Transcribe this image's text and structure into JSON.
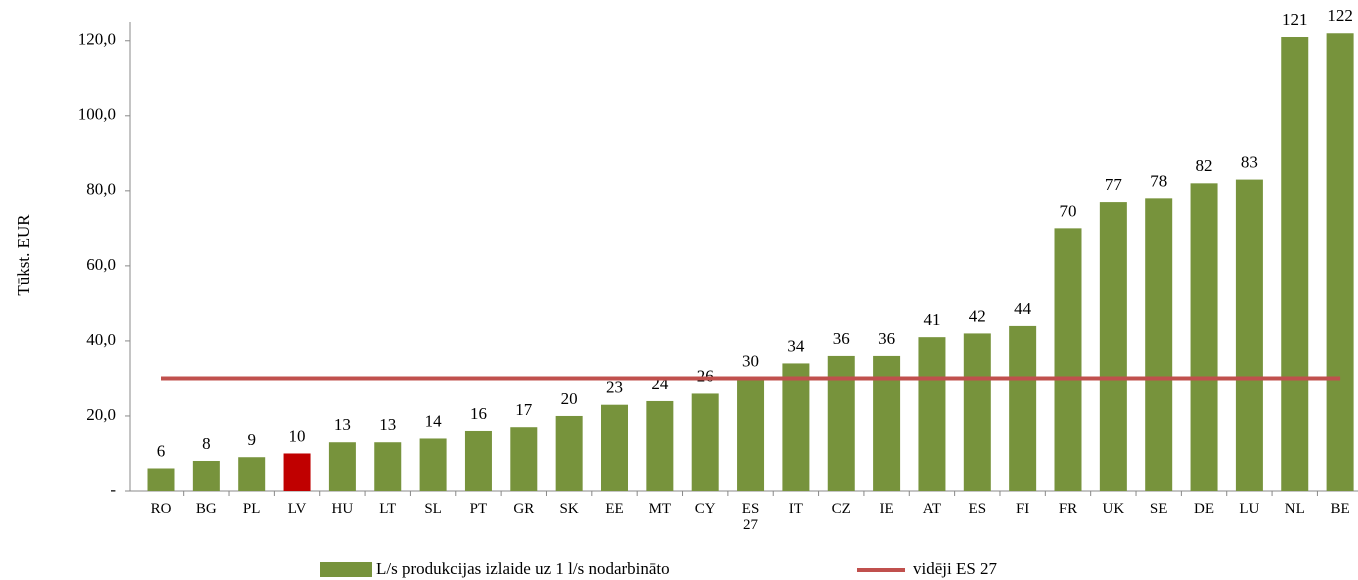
{
  "chart_data": {
    "type": "bar",
    "y_label": "Tūkst. EUR",
    "categories": [
      "RO",
      "BG",
      "PL",
      "LV",
      "HU",
      "LT",
      "SL",
      "PT",
      "GR",
      "SK",
      "EE",
      "MT",
      "CY",
      "ES 27",
      "IT",
      "CZ",
      "IE",
      "AT",
      "ES",
      "FI",
      "FR",
      "UK",
      "SE",
      "DE",
      "LU",
      "NL",
      "BE"
    ],
    "series": [
      {
        "name": "L/s produkcijas izlaide uz 1 l/s nodarbināto",
        "type": "bar",
        "color": "#77933c",
        "colors": [
          "#77933c",
          "#77933c",
          "#77933c",
          "#c00000",
          "#77933c",
          "#77933c",
          "#77933c",
          "#77933c",
          "#77933c",
          "#77933c",
          "#77933c",
          "#77933c",
          "#77933c",
          "#77933c",
          "#77933c",
          "#77933c",
          "#77933c",
          "#77933c",
          "#77933c",
          "#77933c",
          "#77933c",
          "#77933c",
          "#77933c",
          "#77933c",
          "#77933c",
          "#77933c",
          "#77933c"
        ],
        "values": [
          6,
          8,
          9,
          10,
          13,
          13,
          14,
          16,
          17,
          20,
          23,
          24,
          26,
          30,
          34,
          36,
          36,
          41,
          42,
          44,
          70,
          77,
          78,
          82,
          83,
          121,
          122
        ]
      },
      {
        "name": "vidēji ES 27",
        "type": "line",
        "color": "#c0504d",
        "values": [
          30,
          30,
          30,
          30,
          30,
          30,
          30,
          30,
          30,
          30,
          30,
          30,
          30,
          30,
          30,
          30,
          30,
          30,
          30,
          30,
          30,
          30,
          30,
          30,
          30,
          30,
          30
        ]
      }
    ],
    "ylim": [
      0,
      125
    ],
    "yticks": [
      {
        "value": 0,
        "label": "-"
      },
      {
        "value": 20,
        "label": "20,0"
      },
      {
        "value": 40,
        "label": "40,0"
      },
      {
        "value": 60,
        "label": "60,0"
      },
      {
        "value": 80,
        "label": "80,0"
      },
      {
        "value": 100,
        "label": "100,0"
      },
      {
        "value": 120,
        "label": "120,0"
      }
    ],
    "grid": false
  }
}
